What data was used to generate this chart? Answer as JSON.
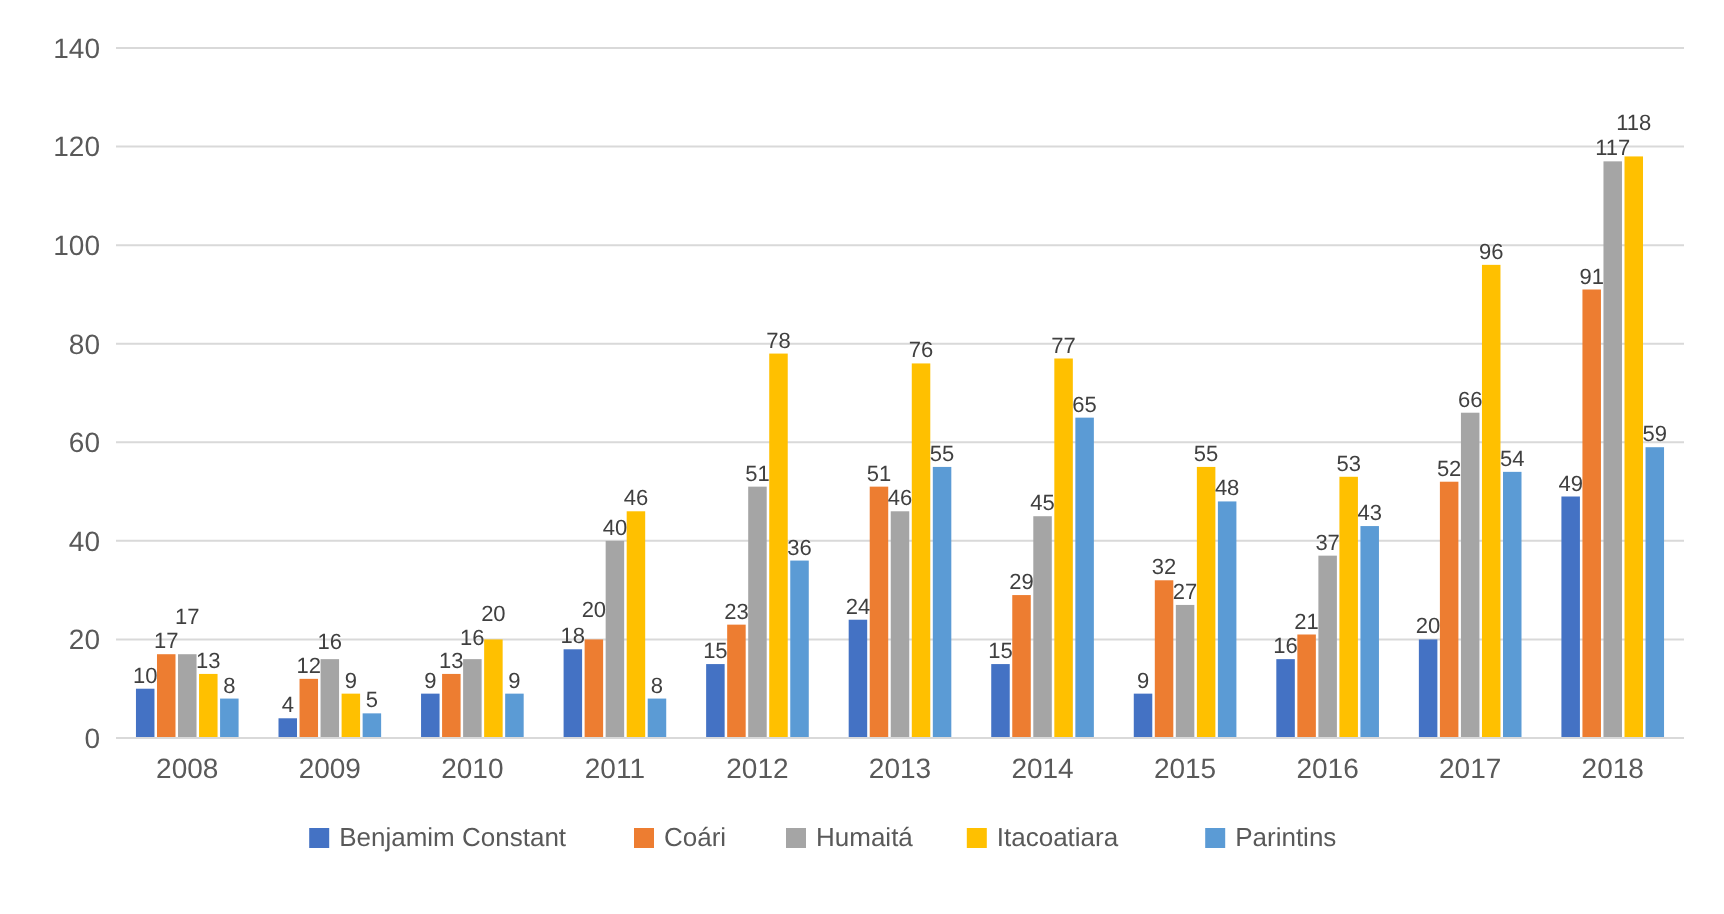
{
  "chart_data": {
    "type": "bar",
    "categories": [
      "2008",
      "2009",
      "2010",
      "2011",
      "2012",
      "2013",
      "2014",
      "2015",
      "2016",
      "2017",
      "2018"
    ],
    "series": [
      {
        "name": "Benjamim Constant",
        "color": "#4472c4",
        "values": [
          10,
          4,
          9,
          18,
          15,
          24,
          15,
          9,
          16,
          20,
          49
        ]
      },
      {
        "name": "Coári",
        "color": "#ed7d31",
        "values": [
          17,
          12,
          13,
          20,
          23,
          51,
          29,
          32,
          21,
          52,
          91
        ]
      },
      {
        "name": "Humaitá",
        "color": "#a5a5a5",
        "values": [
          17,
          16,
          16,
          40,
          51,
          46,
          45,
          27,
          37,
          66,
          117
        ]
      },
      {
        "name": "Itacoatiara",
        "color": "#ffc000",
        "values": [
          13,
          9,
          20,
          46,
          78,
          76,
          77,
          55,
          53,
          96,
          118
        ]
      },
      {
        "name": "Parintins",
        "color": "#5b9bd5",
        "values": [
          8,
          5,
          9,
          8,
          36,
          55,
          65,
          48,
          43,
          54,
          59
        ]
      }
    ],
    "ylim": [
      0,
      140
    ],
    "yticks": [
      0,
      20,
      40,
      60,
      80,
      100,
      120,
      140
    ],
    "grid": "y",
    "legend": "bottom",
    "data_labels": true
  }
}
